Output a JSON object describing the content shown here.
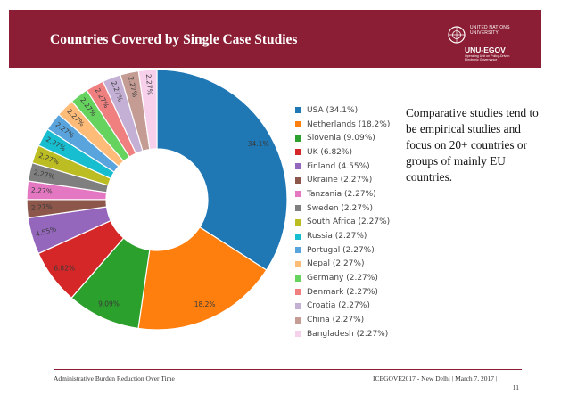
{
  "slide": {
    "title": "Countries Covered by Single Case Studies",
    "header_color": "#8b1e34"
  },
  "logo": {
    "org_line1": "UNITED NATIONS",
    "org_line2": "UNIVERSITY",
    "unit": "UNU-EGOV",
    "tagline_line1": "Operating Unit on Policy-Driven",
    "tagline_line2": "Electronic Governance"
  },
  "note": {
    "text": "Comparative studies tend to be empirical studies and focus on 20+ countries or groups of mainly EU countries."
  },
  "footer": {
    "left": "Administrative Burden Reduction Over Time",
    "right": "ICEGOVE2017 - New Delhi | March 7, 2017 |",
    "page": "11"
  },
  "chart_data": {
    "type": "pie",
    "title": "",
    "legend_position": "right",
    "categories": [
      "USA",
      "Netherlands",
      "Slovenia",
      "UK",
      "Finland",
      "Ukraine",
      "Tanzania",
      "Sweden",
      "South Africa",
      "Russia",
      "Portugal",
      "Nepal",
      "Germany",
      "Denmark",
      "Croatia",
      "China",
      "Bangladesh"
    ],
    "values": [
      34.1,
      18.2,
      9.09,
      6.82,
      4.55,
      2.27,
      2.27,
      2.27,
      2.27,
      2.27,
      2.27,
      2.27,
      2.27,
      2.27,
      2.27,
      2.27,
      2.27
    ],
    "slice_labels": [
      "34.1%",
      "18.2%",
      "9.09%",
      "6.82%",
      "4.55%",
      "2.27%",
      "2.27%",
      "2.27%",
      "2.27%",
      "2.27%",
      "2.27%",
      "2.27%",
      "2.27%",
      "2.27%",
      "2.27%",
      "2.27%",
      "2.27%"
    ],
    "legend_labels": [
      "USA (34.1%)",
      "Netherlands (18.2%)",
      "Slovenia (9.09%)",
      "UK (6.82%)",
      "Finland (4.55%)",
      "Ukraine (2.27%)",
      "Tanzania (2.27%)",
      "Sweden (2.27%)",
      "South Africa (2.27%)",
      "Russia (2.27%)",
      "Portugal (2.27%)",
      "Nepal (2.27%)",
      "Germany (2.27%)",
      "Denmark (2.27%)",
      "Croatia (2.27%)",
      "China (2.27%)",
      "Bangladesh (2.27%)"
    ],
    "colors": [
      "#1f77b4",
      "#ff7f0e",
      "#2ca02c",
      "#d62728",
      "#9467bd",
      "#8c564b",
      "#e377c2",
      "#7f7f7f",
      "#bcbd22",
      "#17becf",
      "#5aa4dd",
      "#ffbb78",
      "#66d35e",
      "#f08080",
      "#c5b0d5",
      "#c49c94",
      "#f7d0ec"
    ]
  }
}
